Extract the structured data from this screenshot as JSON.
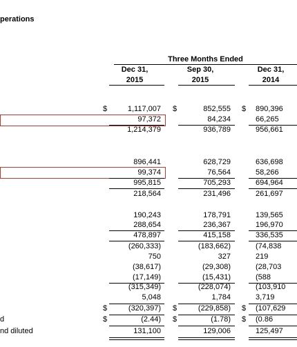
{
  "header": {
    "title": "perations",
    "period": "Three Months Ended",
    "columns": [
      {
        "line1": "Dec 31,",
        "line2": "2015"
      },
      {
        "line1": "Sep 30,",
        "line2": "2015"
      },
      {
        "line1": "Dec 31,",
        "line2": "2014"
      }
    ]
  },
  "table": {
    "rows": [
      {
        "dollars": [
          "$",
          "$",
          "$"
        ],
        "cells": [
          "1,117,007",
          "852,555",
          "890,396"
        ]
      },
      {
        "cells": [
          "97,372",
          "84,234",
          "66,265"
        ]
      },
      {
        "cells": [
          "1,214,379",
          "936,789",
          "956,661"
        ]
      },
      {
        "cells": [
          "896,441",
          "628,729",
          "636,698"
        ]
      },
      {
        "cells": [
          "99,374",
          "76,564",
          "58,266"
        ]
      },
      {
        "cells": [
          "995,815",
          "705,293",
          "694,964"
        ]
      },
      {
        "cells": [
          "218,564",
          "231,496",
          "261,697"
        ]
      },
      {
        "cells": [
          "190,243",
          "178,791",
          "139,565"
        ]
      },
      {
        "cells": [
          "288,654",
          "236,367",
          "196,970"
        ]
      },
      {
        "cells": [
          "478,897",
          "415,158",
          "336,535"
        ]
      },
      {
        "cells": [
          "(260,333)",
          "(183,662)",
          "(74,838"
        ]
      },
      {
        "cells": [
          "750",
          "327",
          "219"
        ]
      },
      {
        "cells": [
          "(38,617)",
          "(29,308)",
          "(28,703"
        ]
      },
      {
        "cells": [
          "(17,149)",
          "(15,431)",
          "(588"
        ]
      },
      {
        "cells": [
          "(315,349)",
          "(228,074)",
          "(103,910"
        ]
      },
      {
        "cells": [
          "5,048",
          "1,784",
          "3,719"
        ]
      },
      {
        "dollars": [
          "$",
          "$",
          "$"
        ],
        "cells": [
          "(320,397)",
          "(229,858)",
          "(107,629"
        ]
      },
      {
        "label": "d",
        "dollars": [
          "$",
          "$",
          "$"
        ],
        "cells": [
          "(2.44)",
          "(1.78)",
          "(0.86"
        ]
      },
      {
        "label": "nd diluted",
        "cells": [
          "131,100",
          "129,006",
          "125,497"
        ]
      }
    ]
  }
}
